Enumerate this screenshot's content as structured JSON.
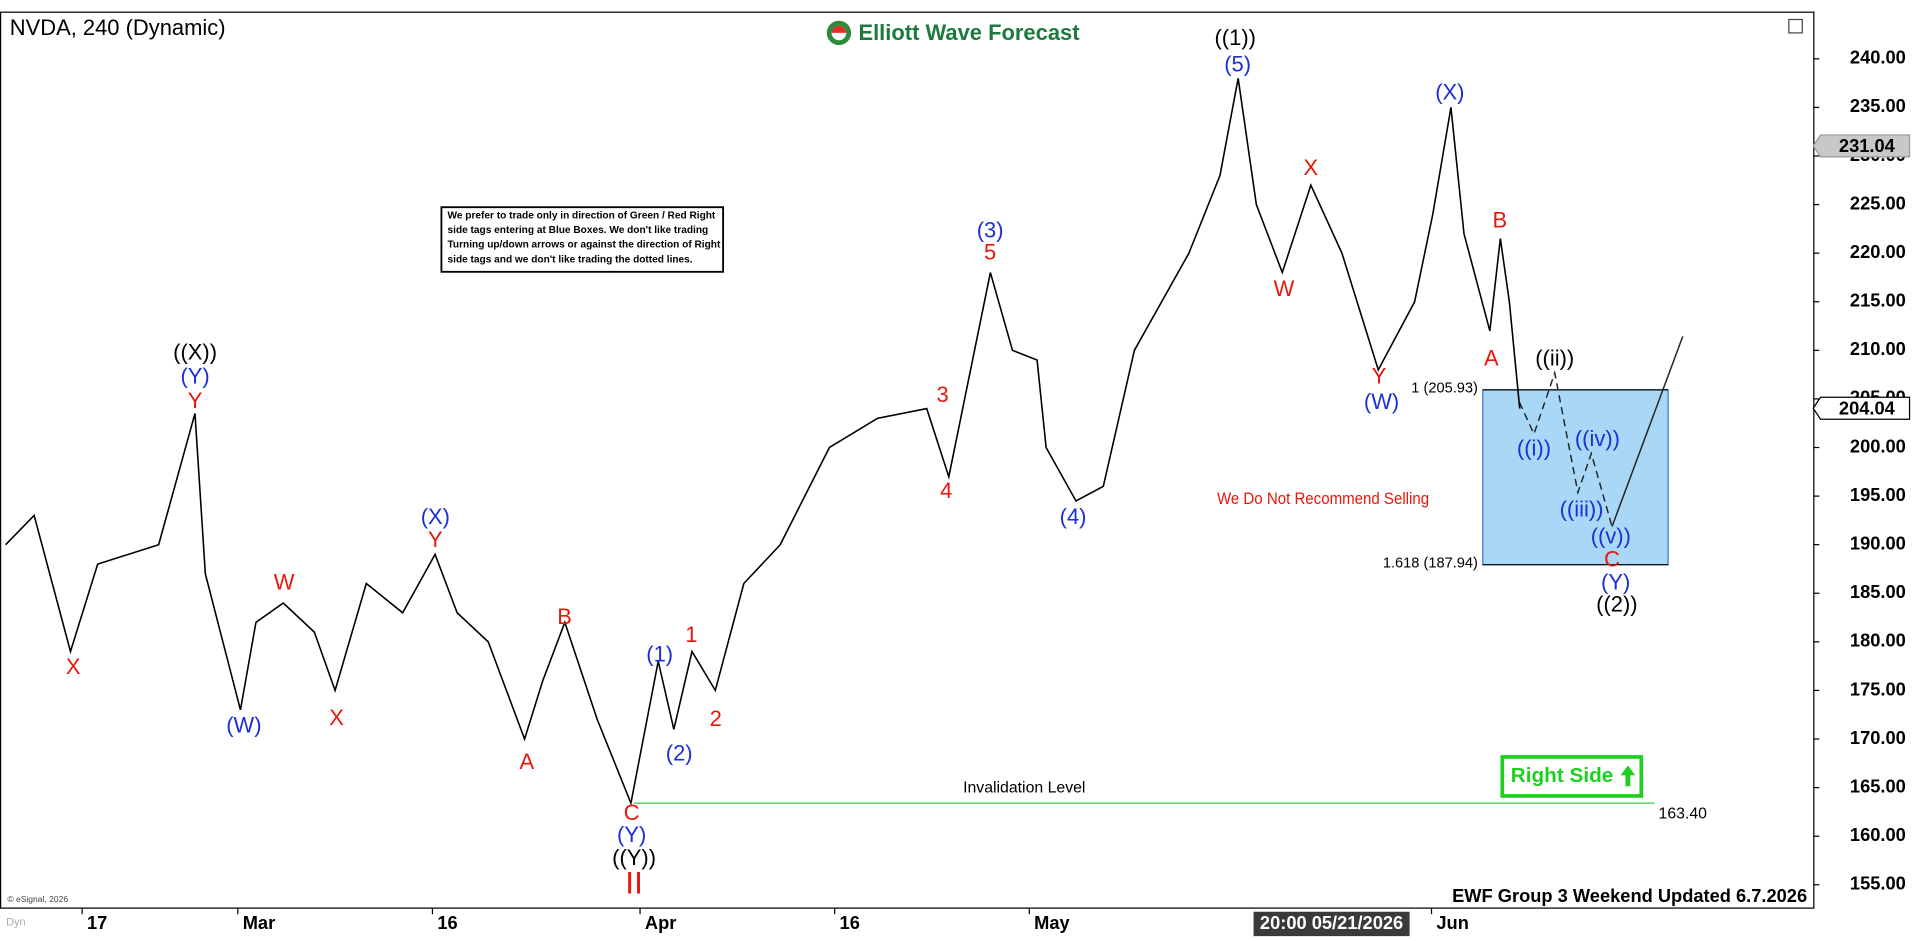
{
  "chart_data": {
    "type": "line",
    "title": "NVDA, 240 (Dynamic)",
    "logo_text": "Elliott Wave Forecast",
    "note": [
      "We prefer to trade only in direction of Green / Red Right",
      "side tags entering at Blue Boxes. We don't like trading",
      "Turning up/down arrows or against the direction of Right",
      "side tags and we don't like trading the dotted lines."
    ],
    "warning": "We Do Not Recommend Selling",
    "right_side": "Right Side",
    "footer": "EWF Group 3 Weekend Updated 6.7.2026",
    "cursor_time": "20:00 05/21/2026",
    "copyright": "© eSignal, 2026",
    "dyn_label": "Dyn",
    "xlim": [
      41.67,
      181.42
    ],
    "xticks": [
      {
        "value": 48,
        "label": "17"
      },
      {
        "value": 60,
        "label": "Mar"
      },
      {
        "value": 75,
        "label": "16"
      },
      {
        "value": 91,
        "label": "Apr"
      },
      {
        "value": 106,
        "label": "16"
      },
      {
        "value": 121,
        "label": "May"
      },
      {
        "value": 152,
        "label": "Jun"
      }
    ],
    "ylim": [
      152.6,
      244.8
    ],
    "yticks": [
      {
        "value": 155,
        "label": "155.00"
      },
      {
        "value": 160,
        "label": "160.00"
      },
      {
        "value": 165,
        "label": "165.00"
      },
      {
        "value": 170,
        "label": "170.00"
      },
      {
        "value": 175,
        "label": "175.00"
      },
      {
        "value": 180,
        "label": "180.00"
      },
      {
        "value": 185,
        "label": "185.00"
      },
      {
        "value": 190,
        "label": "190.00"
      },
      {
        "value": 195,
        "label": "195.00"
      },
      {
        "value": 200,
        "label": "200.00"
      },
      {
        "value": 205,
        "label": "205.00"
      },
      {
        "value": 210,
        "label": "210.00"
      },
      {
        "value": 215,
        "label": "215.00"
      },
      {
        "value": 220,
        "label": "220.00"
      },
      {
        "value": 225,
        "label": "225.00"
      },
      {
        "value": 230,
        "label": "230.00"
      },
      {
        "value": 235,
        "label": "235.00"
      },
      {
        "value": 240,
        "label": "240.00"
      }
    ],
    "series": [
      {
        "name": "NVDA",
        "color": "#000000",
        "x": [
          42.1,
          44.3,
          47.1,
          49.2,
          53.9,
          56.7,
          57.5,
          60.2,
          61.4,
          63.5,
          65.9,
          67.5,
          69.9,
          72.7,
          75.2,
          76.9,
          79.3,
          82.1,
          83.5,
          85.2,
          87.7,
          90.3,
          92.4,
          93.6,
          95.0,
          96.8,
          99.0,
          101.8,
          105.6,
          109.3,
          113.1,
          114.8,
          118.0,
          119.7,
          121.6,
          122.3,
          124.6,
          126.7,
          129.1,
          133.3,
          135.7,
          137.1,
          138.5,
          140.5,
          142.7,
          145.1,
          147.9,
          150.7,
          152.1,
          153.5,
          154.5,
          156.5,
          157.3,
          158.0,
          158.8
        ],
        "values": [
          190,
          193,
          179,
          188,
          190,
          203.5,
          187,
          173,
          182,
          184,
          181,
          175,
          186,
          183,
          189,
          183,
          180,
          170,
          176,
          182,
          172,
          163.4,
          178,
          171,
          179,
          175,
          186,
          190,
          200,
          203,
          204,
          197,
          218,
          210,
          209,
          200,
          194.5,
          196,
          210,
          220,
          228,
          238,
          225,
          218,
          227,
          220,
          208,
          215,
          224,
          235,
          222,
          212,
          221.5,
          215,
          204
        ]
      }
    ],
    "price_tags": [
      231.04,
      204.04
    ],
    "invalidation": {
      "label": "Invalidation Level",
      "value": 163.4,
      "value_label": "163.40"
    },
    "fib_levels": [
      {
        "value": 205.93,
        "label": "1 (205.93)"
      },
      {
        "value": 187.94,
        "label": "1.618 (187.94)"
      }
    ],
    "annotations": [
      {
        "text": "((X))",
        "color": "#000000"
      },
      {
        "text": "(Y)",
        "color": "#1a2fd6"
      },
      {
        "text": "Y",
        "color": "#e8170b"
      },
      {
        "text": "X",
        "color": "#e8170b"
      },
      {
        "text": "(W)",
        "color": "#1a2fd6"
      },
      {
        "text": "W",
        "color": "#e8170b"
      },
      {
        "text": "X",
        "color": "#e8170b"
      },
      {
        "text": "(X)",
        "color": "#1a2fd6"
      },
      {
        "text": "Y",
        "color": "#e8170b"
      },
      {
        "text": "A",
        "color": "#e8170b"
      },
      {
        "text": "B",
        "color": "#e8170b"
      },
      {
        "text": "C",
        "color": "#e8170b"
      },
      {
        "text": "(Y)",
        "color": "#1a2fd6"
      },
      {
        "text": "((Y))",
        "color": "#000000"
      },
      {
        "text": "II",
        "color": "#e8170b"
      },
      {
        "text": "(1)",
        "color": "#1a2fd6"
      },
      {
        "text": "1",
        "color": "#e8170b"
      },
      {
        "text": "(2)",
        "color": "#1a2fd6"
      },
      {
        "text": "2",
        "color": "#e8170b"
      },
      {
        "text": "3",
        "color": "#e8170b"
      },
      {
        "text": "4",
        "color": "#e8170b"
      },
      {
        "text": "(3)",
        "color": "#1a2fd6"
      },
      {
        "text": "5",
        "color": "#e8170b"
      },
      {
        "text": "(4)",
        "color": "#1a2fd6"
      },
      {
        "text": "((1))",
        "color": "#000000"
      },
      {
        "text": "(5)",
        "color": "#1a2fd6"
      },
      {
        "text": "X",
        "color": "#e8170b"
      },
      {
        "text": "W",
        "color": "#e8170b"
      },
      {
        "text": "Y",
        "color": "#e8170b"
      },
      {
        "text": "(W)",
        "color": "#1a2fd6"
      },
      {
        "text": "(X)",
        "color": "#1a2fd6"
      },
      {
        "text": "B",
        "color": "#e8170b"
      },
      {
        "text": "A",
        "color": "#e8170b"
      },
      {
        "text": "((ii))",
        "color": "#000000"
      },
      {
        "text": "((i))",
        "color": "#1a2fd6"
      },
      {
        "text": "((iv))",
        "color": "#1a2fd6"
      },
      {
        "text": "((iii))",
        "color": "#1a2fd6"
      },
      {
        "text": "((v))",
        "color": "#1a2fd6"
      },
      {
        "text": "C",
        "color": "#e8170b"
      },
      {
        "text": "(Y)",
        "color": "#1a2fd6"
      },
      {
        "text": "((2))",
        "color": "#000000"
      }
    ]
  }
}
